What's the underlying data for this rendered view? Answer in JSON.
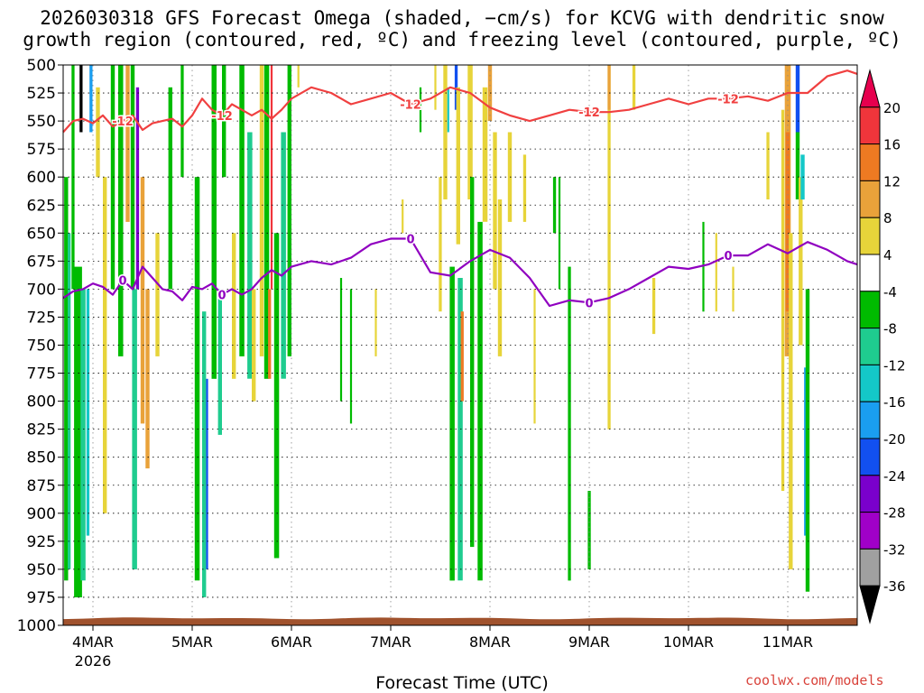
{
  "title": {
    "line1": "2026030318 GFS Forecast Omega (shaded, −cm/s) for KCVG with dendritic snow",
    "line2": "growth region (contoured, red, ºC) and freezing level (contoured, purple, ºC)"
  },
  "credit": "coolwx.com/models",
  "chart_data": {
    "type": "heatmap",
    "xlabel": "Forecast Time (UTC)",
    "ylabel": "",
    "x_ticks": [
      "4MAR",
      "5MAR",
      "6MAR",
      "7MAR",
      "8MAR",
      "9MAR",
      "10MAR",
      "11MAR"
    ],
    "x_year_label": "2026",
    "x_range_days": [
      -0.3,
      7.7
    ],
    "y_ticks": [
      500,
      525,
      550,
      575,
      600,
      625,
      650,
      675,
      700,
      725,
      750,
      775,
      800,
      825,
      850,
      875,
      900,
      925,
      950,
      975,
      1000
    ],
    "y_range": [
      500,
      1000
    ],
    "y_inverted": true,
    "grid": true,
    "colorbar": {
      "labels": [
        "20",
        "16",
        "12",
        "8",
        "4",
        "-4",
        "-8",
        "-12",
        "-16",
        "-20",
        "-24",
        "-28",
        "-32",
        "-36"
      ],
      "colors": [
        "#e6004e",
        "#f0353b",
        "#ee7a22",
        "#e9a23a",
        "#e7d43a",
        "#ffffff",
        "#00bb00",
        "#1fcc8f",
        "#14c8c8",
        "#1a9ef0",
        "#1250f0",
        "#7a00cc",
        "#a000c8",
        "#a0a0a0",
        "#000000"
      ]
    },
    "series": [
      {
        "name": "dendritic snow growth region (-12 ºC)",
        "color": "#f04040",
        "contour_label": "-12",
        "days": [
          -0.3,
          -0.2,
          -0.1,
          0.0,
          0.1,
          0.2,
          0.3,
          0.4,
          0.5,
          0.6,
          0.7,
          0.8,
          0.9,
          1.0,
          1.1,
          1.2,
          1.3,
          1.4,
          1.5,
          1.6,
          1.7,
          1.8,
          1.9,
          2.0,
          2.2,
          2.4,
          2.6,
          2.8,
          3.0,
          3.2,
          3.4,
          3.6,
          3.8,
          4.0,
          4.2,
          4.4,
          4.6,
          4.8,
          5.0,
          5.2,
          5.4,
          5.6,
          5.8,
          6.0,
          6.2,
          6.4,
          6.6,
          6.8,
          7.0,
          7.2,
          7.4,
          7.6,
          7.7
        ],
        "pressure": [
          560,
          550,
          548,
          552,
          545,
          555,
          550,
          545,
          558,
          552,
          550,
          548,
          555,
          545,
          530,
          540,
          545,
          535,
          540,
          545,
          540,
          548,
          540,
          530,
          520,
          525,
          535,
          530,
          525,
          535,
          530,
          520,
          525,
          538,
          545,
          550,
          545,
          540,
          542,
          542,
          540,
          535,
          530,
          535,
          530,
          530,
          528,
          532,
          525,
          525,
          510,
          505,
          508
        ]
      },
      {
        "name": "freezing level (0 ºC)",
        "color": "#9000c0",
        "contour_label": "0",
        "days": [
          -0.3,
          -0.2,
          -0.1,
          0.0,
          0.1,
          0.2,
          0.3,
          0.4,
          0.5,
          0.6,
          0.7,
          0.8,
          0.9,
          1.0,
          1.1,
          1.2,
          1.3,
          1.4,
          1.5,
          1.6,
          1.7,
          1.8,
          1.9,
          2.0,
          2.2,
          2.4,
          2.6,
          2.8,
          3.0,
          3.2,
          3.4,
          3.6,
          3.8,
          4.0,
          4.2,
          4.4,
          4.6,
          4.8,
          5.0,
          5.2,
          5.4,
          5.6,
          5.8,
          6.0,
          6.2,
          6.4,
          6.6,
          6.8,
          7.0,
          7.2,
          7.4,
          7.6,
          7.7
        ],
        "pressure": [
          708,
          702,
          700,
          695,
          698,
          705,
          692,
          700,
          680,
          690,
          700,
          702,
          710,
          698,
          700,
          695,
          705,
          700,
          705,
          700,
          690,
          683,
          688,
          680,
          675,
          678,
          672,
          660,
          655,
          655,
          685,
          688,
          675,
          665,
          672,
          690,
          715,
          710,
          712,
          708,
          700,
          690,
          680,
          682,
          678,
          670,
          670,
          660,
          668,
          658,
          665,
          675,
          678
        ]
      }
    ]
  }
}
